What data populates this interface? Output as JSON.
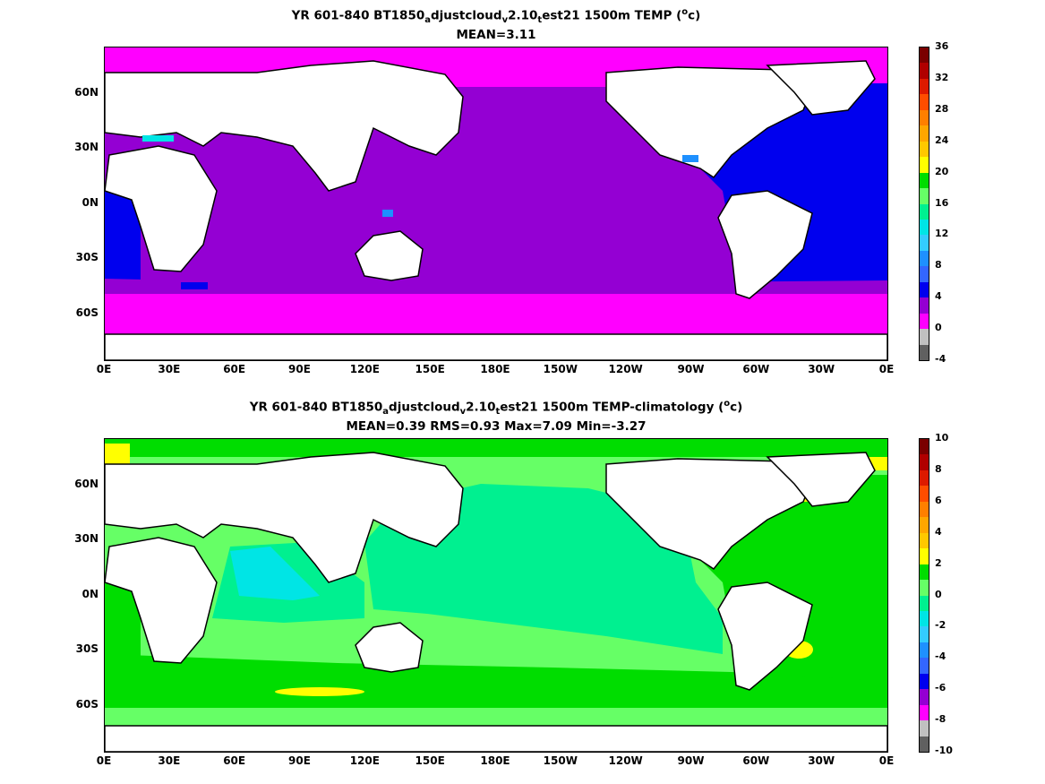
{
  "panels": [
    {
      "title_parts": [
        "YR 601-840 BT1850",
        "a",
        "djustcloud",
        "v",
        "2.10",
        "t",
        "est21 1500m TEMP (",
        "o",
        "c)"
      ],
      "stats": "MEAN=3.11",
      "colorbar": {
        "labels": [
          "36",
          "32",
          "28",
          "24",
          "20",
          "16",
          "12",
          "8",
          "4",
          "0",
          "-4"
        ],
        "colors": [
          "#7a0000",
          "#b00000",
          "#dd1a00",
          "#ff4d00",
          "#ff7f00",
          "#ffa600",
          "#ffc800",
          "#ffff00",
          "#00dd00",
          "#66ff66",
          "#00f090",
          "#00e5e5",
          "#33ccff",
          "#1e90ff",
          "#3366ff",
          "#0000ee",
          "#9400d3",
          "#ff00ff",
          "#c0c0c0",
          "#606060"
        ]
      }
    },
    {
      "title_parts": [
        "YR 601-840 BT1850",
        "a",
        "djustcloud",
        "v",
        "2.10",
        "t",
        "est21 1500m TEMP-climatology (",
        "o",
        "c)"
      ],
      "stats": "MEAN=0.39   RMS=0.93   Max=7.09   Min=-3.27",
      "colorbar": {
        "labels": [
          "10",
          "8",
          "6",
          "4",
          "2",
          "0",
          "-2",
          "-4",
          "-6",
          "-8",
          "-10"
        ],
        "colors": [
          "#7a0000",
          "#b00000",
          "#dd1a00",
          "#ff4d00",
          "#ff7f00",
          "#ffa600",
          "#ffc800",
          "#ffff00",
          "#00dd00",
          "#66ff66",
          "#00f090",
          "#00e5e5",
          "#33ccff",
          "#1e90ff",
          "#3366ff",
          "#0000ee",
          "#9400d3",
          "#ff00ff",
          "#c0c0c0",
          "#606060"
        ]
      }
    }
  ],
  "axes": {
    "x_ticks": [
      "0E",
      "30E",
      "60E",
      "90E",
      "120E",
      "150E",
      "180E",
      "150W",
      "120W",
      "90W",
      "60W",
      "30W",
      "0E"
    ],
    "y_ticks": [
      "60N",
      "30N",
      "0N",
      "30S",
      "60S"
    ]
  },
  "field_colors": {
    "top_pacific_indian": "#9400d3",
    "top_atlantic": "#0000ee",
    "top_polar": "#ff00ff",
    "bottom_pacific": "#00f090",
    "bottom_south": "#66ff66",
    "bottom_atlantic": "#00dd00",
    "bottom_arabian": "#00e5e5",
    "bottom_warm": "#ffff00",
    "land": "#ffffff",
    "coast": "#000000"
  }
}
